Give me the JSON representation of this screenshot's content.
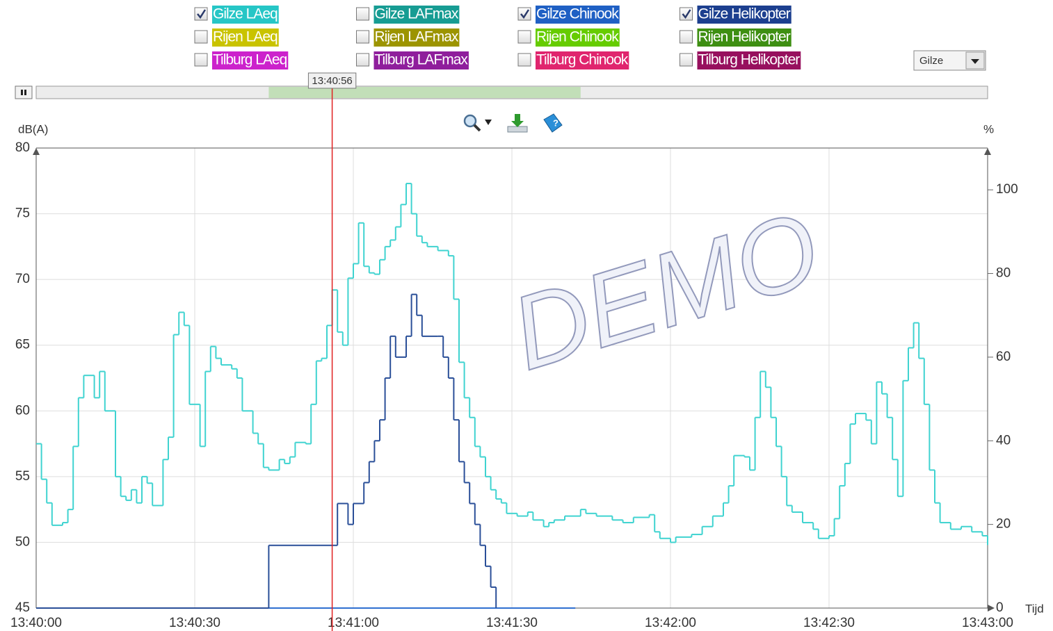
{
  "chart_data": {
    "type": "line",
    "y_axis_label": "dB(A)",
    "y2_axis_label": "%",
    "x_axis_label": "Tijd",
    "watermark": "DEMO",
    "dropdown": "Gilze",
    "cursor": {
      "value": 56,
      "label": "13:40:56"
    },
    "slider_window": [
      44,
      103
    ],
    "xlim": [
      0,
      180
    ],
    "xticks": [
      {
        "value": 0,
        "label": "13:40:00"
      },
      {
        "value": 30,
        "label": "13:40:30"
      },
      {
        "value": 60,
        "label": "13:41:00"
      },
      {
        "value": 90,
        "label": "13:41:30"
      },
      {
        "value": 120,
        "label": "13:42:00"
      },
      {
        "value": 150,
        "label": "13:42:30"
      },
      {
        "value": 180,
        "label": "13:43:00"
      }
    ],
    "ylim": [
      45,
      80
    ],
    "yticks": [
      45,
      50,
      55,
      60,
      65,
      70,
      75,
      80
    ],
    "y2lim": [
      0,
      110
    ],
    "y2ticks": [
      0,
      20,
      40,
      60,
      80,
      100
    ],
    "grid": true,
    "series": [
      {
        "name": "Gilze LAeq",
        "color": "#26c6c6",
        "line_color": "#3fd3d0",
        "checked": true,
        "axis": "y",
        "x": [
          0,
          1,
          2,
          3,
          5,
          6,
          7,
          8,
          9,
          11,
          12,
          13,
          15,
          16,
          17,
          18,
          19,
          20,
          21,
          22,
          24,
          25,
          26,
          27,
          28,
          29,
          31,
          32,
          33,
          34,
          35,
          37,
          38,
          39,
          41,
          42,
          43,
          44,
          46,
          47,
          48,
          49,
          51,
          52,
          53,
          54,
          55,
          56,
          57,
          58,
          59,
          60,
          61,
          62,
          63,
          64,
          65,
          66,
          67,
          68,
          69,
          70,
          71,
          72,
          73,
          74,
          76,
          78,
          79,
          80,
          81,
          82,
          83,
          84,
          85,
          86,
          87,
          88,
          89,
          91,
          93,
          94,
          96,
          97,
          98,
          100,
          103,
          104,
          106,
          109,
          111,
          113,
          116,
          117,
          118,
          120,
          121,
          124,
          126,
          128,
          130,
          131,
          132,
          134,
          135,
          136,
          137,
          138,
          139,
          140,
          141,
          142,
          143,
          145,
          147,
          148,
          150,
          151,
          152,
          153,
          154,
          155,
          157,
          158,
          159,
          160,
          161,
          162,
          163,
          164,
          165,
          166,
          167,
          168,
          169,
          170,
          171,
          173,
          175,
          177,
          179,
          180
        ],
        "values": [
          57.5,
          54.8,
          53,
          51.3,
          51.5,
          52.5,
          57.3,
          61,
          62.7,
          61,
          63,
          60,
          55,
          53.5,
          53.2,
          54,
          53,
          55,
          54.5,
          52.8,
          56.3,
          58,
          65.8,
          67.5,
          66.5,
          60.5,
          57.3,
          63,
          64.9,
          64,
          63.5,
          63.2,
          62.5,
          60,
          58.3,
          57.5,
          55.7,
          55.5,
          56.3,
          56,
          56.5,
          57.6,
          57.5,
          60.5,
          63.8,
          64,
          66.5,
          69.2,
          66,
          65,
          70.1,
          71.2,
          74.3,
          71,
          70.5,
          70.4,
          71.5,
          72.5,
          73,
          74,
          75.7,
          77.3,
          75,
          73.3,
          72.8,
          72.5,
          72.2,
          71.8,
          68.5,
          63.7,
          61,
          59.5,
          57.3,
          56.5,
          55,
          54,
          53.3,
          53,
          52.2,
          52,
          52.3,
          51.7,
          51.2,
          51.5,
          51.7,
          52,
          52.5,
          52.2,
          52,
          51.7,
          51.5,
          51.9,
          52.1,
          50.8,
          50.3,
          50,
          50.4,
          50.6,
          51.2,
          52,
          53,
          54.3,
          56.6,
          56.5,
          55.5,
          59.5,
          63,
          61.8,
          59.5,
          57.3,
          55,
          52.8,
          52.3,
          51.5,
          51,
          50.3,
          50.5,
          51.8,
          54.3,
          56,
          59,
          59.8,
          59.3,
          57.5,
          62.2,
          61.3,
          59.5,
          56.3,
          53.5,
          62.3,
          64.8,
          66.7,
          64,
          60.5,
          55.5,
          53,
          51.5,
          51,
          51.2,
          50.8,
          50.5,
          49.8
        ]
      },
      {
        "name": "Gilze LAFmax",
        "color": "#179c93",
        "checked": false
      },
      {
        "name": "Gilze Chinook",
        "color": "#1f60c4",
        "line_color": "#2f6fd0",
        "checked": true,
        "axis": "y2",
        "x": [
          0,
          102
        ],
        "values": [
          0,
          0
        ]
      },
      {
        "name": "Gilze Helikopter",
        "color": "#1c3f8f",
        "line_color": "#2a4f98",
        "checked": true,
        "axis": "y2",
        "x": [
          0,
          44,
          57,
          59,
          60,
          62,
          63,
          64,
          65,
          66,
          67,
          68,
          70,
          71,
          72,
          73,
          76,
          77,
          78,
          79,
          80,
          81,
          82,
          83,
          84,
          85,
          86,
          87
        ],
        "values": [
          0,
          15,
          25,
          20,
          25,
          30,
          35,
          40,
          45,
          55,
          65,
          60,
          65,
          75,
          70,
          65,
          65,
          60,
          55,
          45,
          35,
          30,
          25,
          20,
          15,
          10,
          5,
          0
        ]
      },
      {
        "name": "Rijen LAeq",
        "color": "#c9c300",
        "checked": false
      },
      {
        "name": "Rijen LAFmax",
        "color": "#9c9400",
        "checked": false
      },
      {
        "name": "Rijen Chinook",
        "color": "#66cc00",
        "checked": false
      },
      {
        "name": "Rijen Helikopter",
        "color": "#3e8f12",
        "checked": false
      },
      {
        "name": "Tilburg LAeq",
        "color": "#cc22cc",
        "checked": false
      },
      {
        "name": "Tilburg LAFmax",
        "color": "#8f1e9c",
        "checked": false
      },
      {
        "name": "Tilburg Chinook",
        "color": "#e0256e",
        "checked": false
      },
      {
        "name": "Tilburg Helikopter",
        "color": "#97105e",
        "checked": false
      }
    ]
  }
}
